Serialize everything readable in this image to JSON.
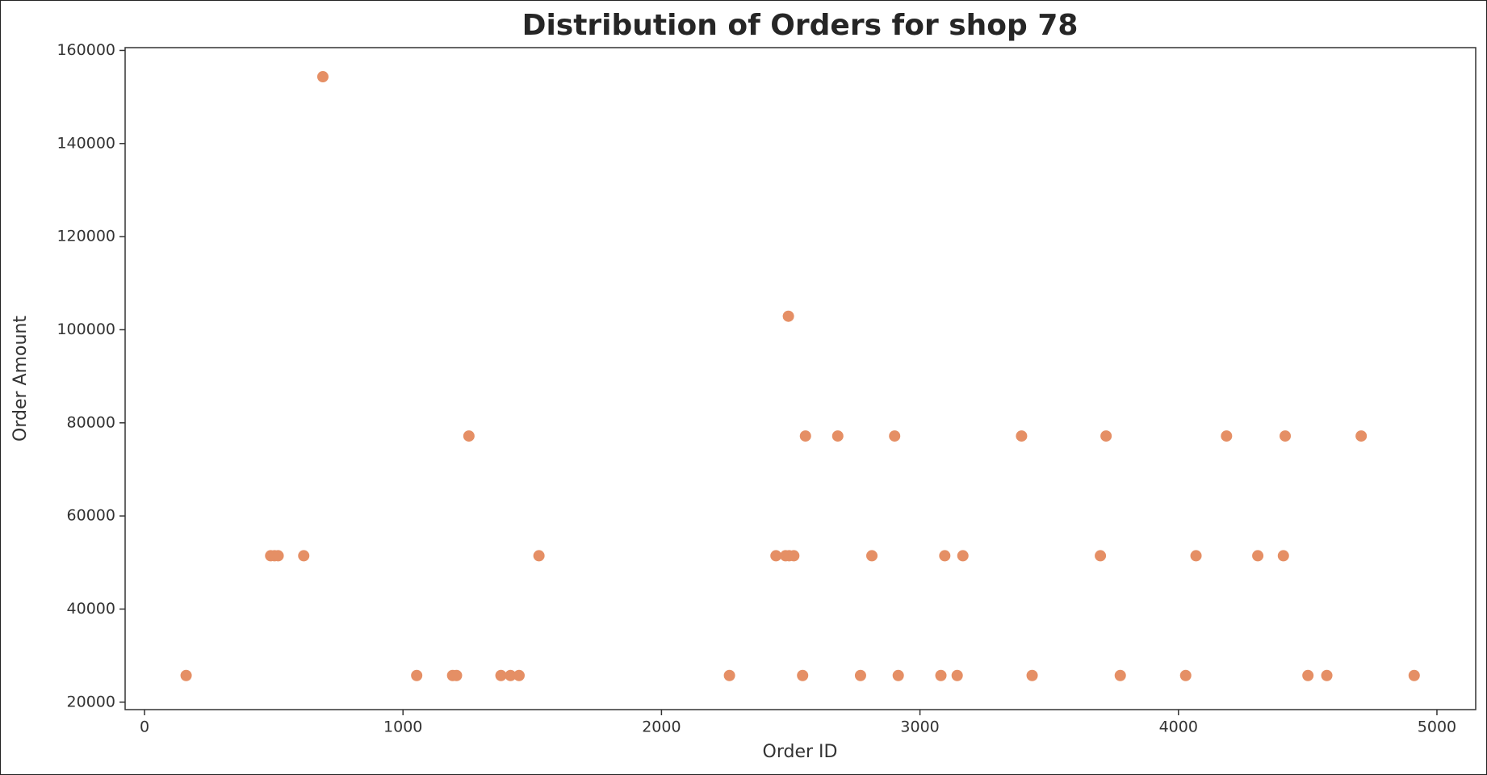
{
  "chart_data": {
    "type": "scatter",
    "title": "Distribution of Orders for shop 78",
    "x_label": "Order ID",
    "y_label": "Order Amount",
    "color": "#e58f65",
    "x": [
      161,
      1053,
      1192,
      1207,
      1379,
      1416,
      1449,
      2263,
      2546,
      2770,
      2916,
      3081,
      3144,
      3434,
      3775,
      4028,
      4501,
      4574,
      4912,
      488,
      503,
      517,
      616,
      1526,
      2443,
      2480,
      2494,
      2512,
      2814,
      3096,
      3166,
      3698,
      4068,
      4307,
      4406,
      1255,
      2557,
      2682,
      2902,
      3393,
      3720,
      4186,
      4413,
      4707,
      2491,
      690
    ],
    "values": [
      25725,
      25725,
      25725,
      25725,
      25725,
      25725,
      25725,
      25725,
      25725,
      25725,
      25725,
      25725,
      25725,
      25725,
      25725,
      25725,
      25725,
      25725,
      25725,
      51450,
      51450,
      51450,
      51450,
      51450,
      51450,
      51450,
      51450,
      51450,
      51450,
      51450,
      51450,
      51450,
      51450,
      51450,
      51450,
      77175,
      77175,
      77175,
      77175,
      77175,
      77175,
      77175,
      77175,
      77175,
      102900,
      154350
    ],
    "xlim": [
      -75,
      5150
    ],
    "ylim": [
      18400,
      160600
    ],
    "xticks": [
      0,
      1000,
      2000,
      3000,
      4000,
      5000
    ],
    "yticks": [
      20000,
      40000,
      60000,
      80000,
      100000,
      120000,
      140000,
      160000
    ]
  }
}
